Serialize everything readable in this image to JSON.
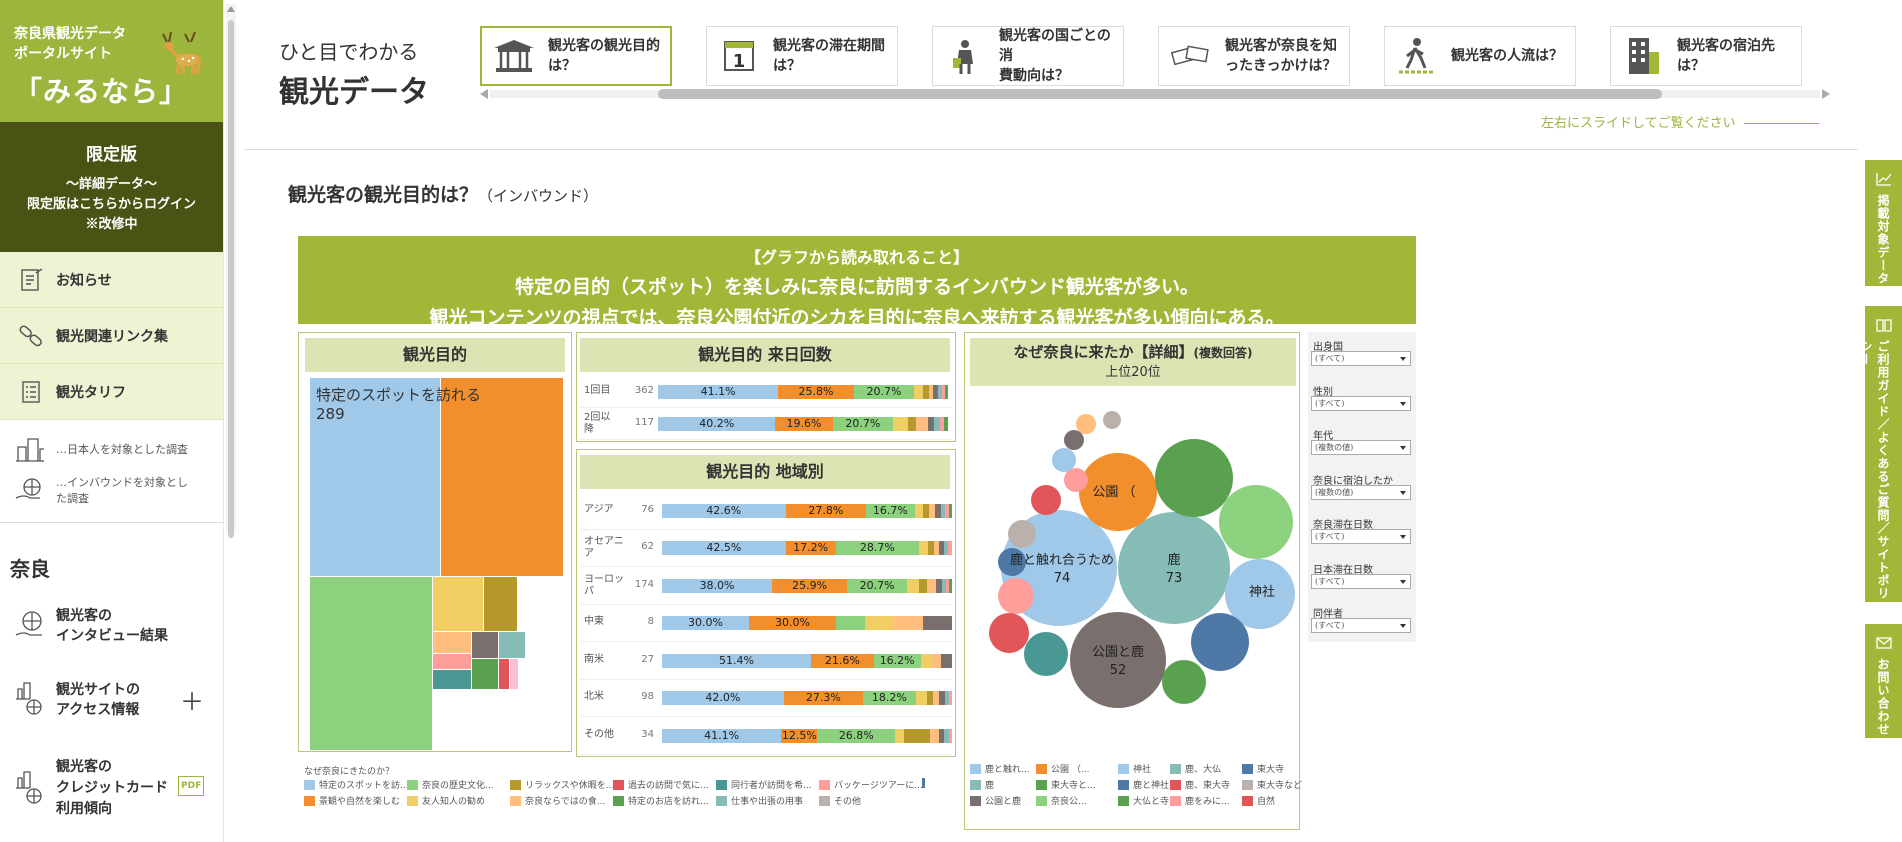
{
  "site": {
    "line1": "奈良県観光データ",
    "line2": "ポータルサイト",
    "name": "「みるなら」"
  },
  "limited": {
    "title": "限定版",
    "line1": "～詳細データ～",
    "line2": "限定版はこちらからログイン",
    "line3": "※改修中"
  },
  "nav": [
    {
      "label": "お知らせ",
      "icon": "notebook-icon"
    },
    {
      "label": "観光関連リンク集",
      "icon": "link-icon"
    },
    {
      "label": "観光タリフ",
      "icon": "list-icon"
    }
  ],
  "sub": [
    {
      "label": "…日本人を対象とした調査",
      "icon": "building-icon"
    },
    {
      "label1": "…インバウンドを対象とし",
      "label2": "た調査",
      "icon": "globe-hand-icon"
    }
  ],
  "nara_heading": "奈良",
  "side_items": [
    {
      "l1": "観光客の",
      "l2": "インタビュー結果"
    },
    {
      "l1": "観光サイトの",
      "l2": "アクセス情報",
      "plus": "＋"
    },
    {
      "l1": "観光客の",
      "l2": "クレジットカード",
      "l3": "利用傾向",
      "badge": "PDF"
    }
  ],
  "header": {
    "t1": "ひと目でわかる",
    "t2": "観光データ",
    "hint": "左右にスライドしてご覧ください"
  },
  "cards": [
    {
      "l1": "観光客の観光目的",
      "l2": "は？",
      "icon": "temple-icon"
    },
    {
      "l1": "観光客の滞在期間",
      "l2": "は？",
      "icon": "calendar-icon"
    },
    {
      "l1": "観光客の国ごとの消",
      "l2": "費動向は？",
      "icon": "shopping-icon"
    },
    {
      "l1": "観光客が奈良を知",
      "l2": "ったきっかけは？",
      "icon": "ticket-icon"
    },
    {
      "l1": "観光客の人流は？",
      "l2": "",
      "icon": "walker-icon"
    },
    {
      "l1": "観光客の宿泊先",
      "l2": "は？",
      "icon": "hotel-icon"
    }
  ],
  "page": {
    "title": "観光客の観光目的は？",
    "sub": "（インバウンド）"
  },
  "banner": {
    "head": "【グラフから読み取れること】",
    "line1": "特定の目的（スポット）を楽しみに奈良に訪問するインバウンド観光客が多い。",
    "line2": "観光コンテンツの視点では、奈良公園付近のシカを目的に奈良へ来訪する観光客が多い傾向にある。"
  },
  "treemap": {
    "title": "観光目的",
    "main_label": "特定のスポットを訪れる",
    "main_value": "289"
  },
  "visits": {
    "title": "観光目的 来日回数",
    "rows": [
      {
        "label": "1回目",
        "n": "362",
        "a": "41.1%",
        "b": "25.8%",
        "c": "20.7%",
        "p": [
          41.1,
          25.8,
          20.7,
          3,
          2,
          1.5,
          1.5,
          1.5,
          1,
          1
        ]
      },
      {
        "label1": "2回以",
        "label2": "降",
        "n": "117",
        "a": "40.2%",
        "b": "19.6%",
        "c": "20.7%",
        "p": [
          40.2,
          19.6,
          20.7,
          5,
          3,
          4,
          2,
          2,
          1.5,
          1.3
        ]
      }
    ]
  },
  "region": {
    "title": "観光目的 地域別",
    "rows": [
      {
        "label1": "アジア",
        "n": "76",
        "a": "42.6%",
        "b": "27.8%",
        "c": "16.7%",
        "p": [
          42.6,
          27.8,
          16.7,
          3,
          2,
          2,
          2,
          1.5,
          1.2,
          1.2
        ]
      },
      {
        "label1": "オセアニ",
        "label2": "ア",
        "n": "62",
        "a": "42.5%",
        "b": "17.2%",
        "c": "28.7%",
        "p": [
          42.5,
          17.2,
          28.7,
          3,
          2,
          2,
          1.5,
          1.5,
          1.3,
          0
        ]
      },
      {
        "label1": "ヨーロッ",
        "label2": "パ",
        "n": "174",
        "a": "38.0%",
        "b": "25.9%",
        "c": "20.7%",
        "p": [
          38,
          25.9,
          20.7,
          4,
          3,
          3,
          2,
          1.5,
          1,
          1
        ]
      },
      {
        "label1": "中東",
        "n": "8",
        "a": "30.0%",
        "b": "30.0%",
        "c": "",
        "p": [
          30,
          30,
          10,
          10,
          0,
          10,
          10,
          0,
          0,
          0
        ]
      },
      {
        "label1": "南米",
        "n": "27",
        "a": "51.4%",
        "b": "21.6%",
        "c": "16.2%",
        "p": [
          51.4,
          21.6,
          16.2,
          4,
          0,
          3,
          3.8,
          0,
          0,
          0
        ]
      },
      {
        "label1": "北米",
        "n": "98",
        "a": "42.0%",
        "b": "27.3%",
        "c": "18.2%",
        "p": [
          42,
          27.3,
          18.2,
          4,
          2,
          2,
          2,
          1.5,
          1,
          0
        ]
      },
      {
        "label1": "その他",
        "n": "34",
        "a": "41.1%",
        "b": "12.5%",
        "c": "26.8%",
        "p": [
          41.1,
          12.5,
          26.8,
          3,
          9,
          3,
          2,
          1.5,
          1.1,
          0
        ]
      }
    ]
  },
  "legend1": {
    "title": "なぜ奈良にきたのか？",
    "items": [
      "特定のスポットを訪...",
      "奈良の歴史文化...",
      "リラックスや休暇を...",
      "過去の訪問で気に...",
      "同行者が訪問を希...",
      "パッケージツアーに...",
      "",
      "景観や自然を楽しむ",
      "友人知人の勧め",
      "奈良ならではの食...",
      "特定のお店を訪れ...",
      "仕事や出張の用事",
      "その他"
    ]
  },
  "bubble": {
    "title": "なぜ奈良に来たか【詳細】",
    "title_suffix": "(複数回答)",
    "subtitle": "上位20位",
    "labels": [
      {
        "t": "鹿と触れ合うため",
        "v": "74"
      },
      {
        "t": "鹿",
        "v": "73"
      },
      {
        "t": "公園と鹿",
        "v": "52"
      },
      {
        "t": "神社",
        "v": ""
      },
      {
        "t": "公園 （",
        "v": ""
      }
    ]
  },
  "legend2": {
    "items": [
      "鹿と触れ...",
      "公園 （...",
      "神社",
      "鹿、大仏",
      "東大寺",
      "鹿",
      "東大寺と...",
      "鹿と神社",
      "鹿、東大寺",
      "東大寺など",
      "公園と鹿",
      "奈良公...",
      "大仏と寺",
      "鹿をみに...",
      "自然"
    ]
  },
  "filters": [
    {
      "label": "出身国",
      "value": "(すべて)"
    },
    {
      "label": "性別",
      "value": "(すべて)"
    },
    {
      "label": "年代",
      "value": "(複数の値)"
    },
    {
      "label": "奈良に宿泊したか",
      "value": "(複数の値)"
    },
    {
      "label": "奈良滞在日数",
      "value": "(すべて)"
    },
    {
      "label": "日本滞在日数",
      "value": "(すべて)"
    },
    {
      "label": "同伴者",
      "value": "(すべて)"
    }
  ],
  "right_tabs": [
    {
      "label": "掲載対象データ",
      "icon": "chart-icon"
    },
    {
      "label": "ご利用ガイド／よくあるご質問／サイトポリシー",
      "icon": "book-icon"
    },
    {
      "label": "お問い合わせ",
      "icon": "mail-icon"
    }
  ],
  "colors": {
    "accent": "#9cb53d",
    "dark": "#4a5314",
    "c1": "#a0c8e8",
    "c2": "#f28e2b",
    "c3": "#8cd17d",
    "c4": "#f1ce63",
    "c5": "#b6992d",
    "c6": "#ffbe7d",
    "c7": "#79706e",
    "c8": "#86bcb6",
    "c9": "#ff9d9a",
    "c10": "#59a14f",
    "c11": "#e15759",
    "c12": "#499894",
    "c13": "#fabfd2",
    "c14": "#bab0ac",
    "c15": "#4e79a7",
    "c16": "#d37295"
  }
}
